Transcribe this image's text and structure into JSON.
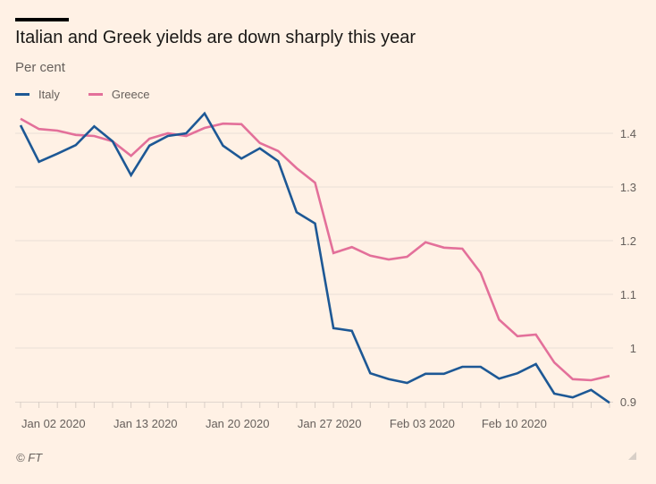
{
  "chart_data": {
    "type": "line",
    "title": "Italian and Greek yields are down sharply this year",
    "subtitle": "Per cent",
    "xlabel": "",
    "ylabel": "Per cent",
    "ylim": [
      0.9,
      1.45
    ],
    "yticks": [
      0.9,
      1,
      1.1,
      1.2,
      1.3,
      1.4
    ],
    "ytick_labels": [
      "0.9",
      "1",
      "1.1",
      "1.2",
      "1.3",
      "1.4"
    ],
    "xtick_labels": [
      {
        "index": 0,
        "label": "Jan 02 2020"
      },
      {
        "index": 5,
        "label": "Jan 13 2020"
      },
      {
        "index": 10,
        "label": "Jan 20 2020"
      },
      {
        "index": 15,
        "label": "Jan 27 2020"
      },
      {
        "index": 20,
        "label": "Feb 03 2020"
      },
      {
        "index": 25,
        "label": "Feb 10 2020"
      }
    ],
    "n_points": 33,
    "grid": true,
    "legend_position": "top-left",
    "series": [
      {
        "name": "Italy",
        "color": "#1d5895",
        "values": [
          1.415,
          1.347,
          1.362,
          1.378,
          1.413,
          1.385,
          1.322,
          1.377,
          1.395,
          1.4,
          1.437,
          1.377,
          1.353,
          1.372,
          1.348,
          1.253,
          1.232,
          1.037,
          1.032,
          0.953,
          0.942,
          0.935,
          0.952,
          0.952,
          0.965,
          0.965,
          0.943,
          0.953,
          0.97,
          0.915,
          0.908,
          0.922,
          0.898
        ]
      },
      {
        "name": "Greece",
        "color": "#e3709a",
        "values": [
          1.427,
          1.408,
          1.405,
          1.397,
          1.395,
          1.385,
          1.358,
          1.39,
          1.4,
          1.395,
          1.41,
          1.418,
          1.417,
          1.382,
          1.367,
          1.335,
          1.308,
          1.177,
          1.188,
          1.172,
          1.165,
          1.17,
          1.197,
          1.187,
          1.185,
          1.14,
          1.053,
          1.022,
          1.025,
          0.973,
          0.942,
          0.94,
          0.948
        ]
      }
    ]
  },
  "footer": {
    "source": "© FT"
  }
}
